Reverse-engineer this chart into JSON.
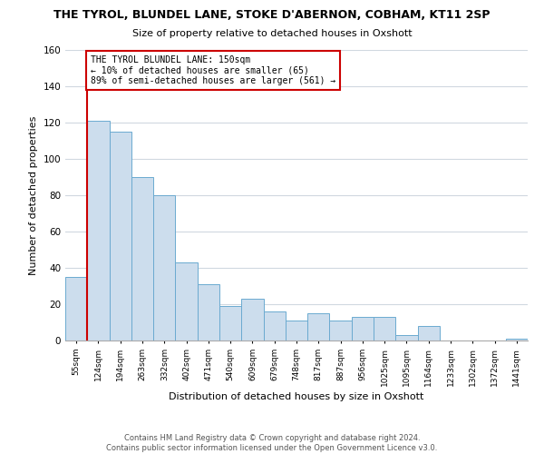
{
  "title": "THE TYROL, BLUNDEL LANE, STOKE D'ABERNON, COBHAM, KT11 2SP",
  "subtitle": "Size of property relative to detached houses in Oxshott",
  "xlabel": "Distribution of detached houses by size in Oxshott",
  "ylabel": "Number of detached properties",
  "bar_labels": [
    "55sqm",
    "124sqm",
    "194sqm",
    "263sqm",
    "332sqm",
    "402sqm",
    "471sqm",
    "540sqm",
    "609sqm",
    "679sqm",
    "748sqm",
    "817sqm",
    "887sqm",
    "956sqm",
    "1025sqm",
    "1095sqm",
    "1164sqm",
    "1233sqm",
    "1302sqm",
    "1372sqm",
    "1441sqm"
  ],
  "bar_heights": [
    35,
    121,
    115,
    90,
    80,
    43,
    31,
    19,
    23,
    16,
    11,
    15,
    11,
    13,
    13,
    3,
    8,
    0,
    0,
    0,
    1
  ],
  "bar_color": "#ccdded",
  "bar_edge_color": "#6baad0",
  "property_line_label": "THE TYROL BLUNDEL LANE: 150sqm",
  "annotation_line1": "← 10% of detached houses are smaller (65)",
  "annotation_line2": "89% of semi-detached houses are larger (561) →",
  "annotation_box_edge": "#cc0000",
  "property_line_color": "#cc0000",
  "ylim": [
    0,
    160
  ],
  "yticks": [
    0,
    20,
    40,
    60,
    80,
    100,
    120,
    140,
    160
  ],
  "footer1": "Contains HM Land Registry data © Crown copyright and database right 2024.",
  "footer2": "Contains public sector information licensed under the Open Government Licence v3.0.",
  "background_color": "#ffffff",
  "grid_color": "#d0d8e0"
}
